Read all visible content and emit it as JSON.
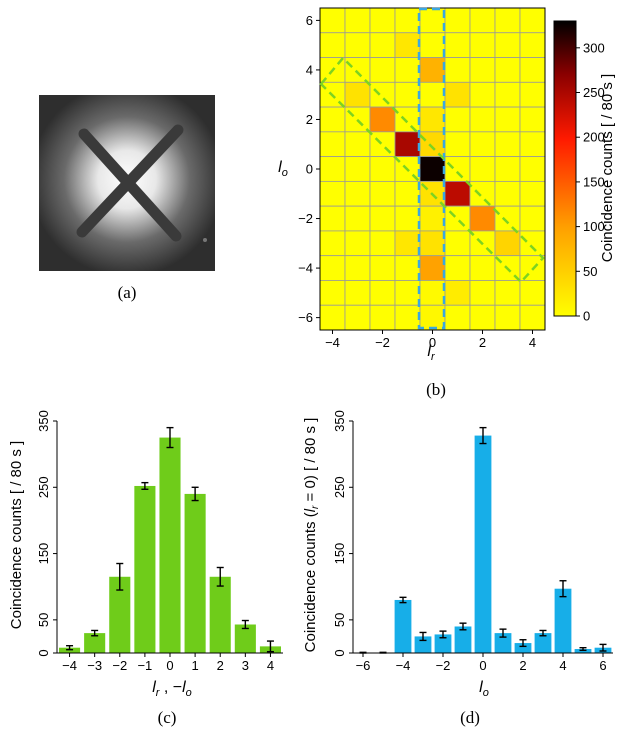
{
  "captions": {
    "a": "(a)",
    "b": "(b)",
    "c": "(c)",
    "d": "(d)"
  },
  "chart_data": [
    {
      "panel": "a",
      "type": "image",
      "description_label": ""
    },
    {
      "panel": "b",
      "type": "heatmap",
      "xlabel": "l_r",
      "ylabel": "l_o",
      "x": [
        -4,
        -3,
        -2,
        -1,
        0,
        1,
        2,
        3,
        4
      ],
      "y": [
        6,
        5,
        4,
        3,
        2,
        1,
        0,
        -1,
        -2,
        -3,
        -4,
        -5,
        -6
      ],
      "xticks": [
        "−4",
        "−2",
        "0",
        "2",
        "4"
      ],
      "xtick_values": [
        -4,
        -2,
        0,
        2,
        4
      ],
      "yticks": [
        "6",
        "4",
        "2",
        "0",
        "−2",
        "−4",
        "−6"
      ],
      "ytick_values": [
        6,
        4,
        2,
        0,
        -2,
        -4,
        -6
      ],
      "values": [
        [
          0,
          0,
          0,
          0,
          0,
          0,
          0,
          0,
          0
        ],
        [
          0,
          0,
          0,
          25,
          0,
          0,
          0,
          0,
          0
        ],
        [
          0,
          0,
          0,
          0,
          80,
          0,
          0,
          0,
          0
        ],
        [
          0,
          30,
          0,
          0,
          0,
          30,
          0,
          0,
          0
        ],
        [
          0,
          0,
          115,
          0,
          25,
          0,
          0,
          0,
          0
        ],
        [
          0,
          0,
          0,
          252,
          40,
          0,
          0,
          0,
          0
        ],
        [
          0,
          0,
          0,
          0,
          325,
          0,
          0,
          0,
          0
        ],
        [
          0,
          0,
          0,
          0,
          30,
          240,
          0,
          0,
          0
        ],
        [
          0,
          0,
          0,
          0,
          15,
          0,
          115,
          0,
          0
        ],
        [
          0,
          0,
          0,
          25,
          30,
          0,
          0,
          45,
          0
        ],
        [
          0,
          0,
          0,
          0,
          97,
          0,
          0,
          0,
          0
        ],
        [
          0,
          0,
          0,
          0,
          5,
          20,
          0,
          0,
          0
        ],
        [
          0,
          0,
          0,
          0,
          7,
          0,
          0,
          0,
          0
        ]
      ],
      "colorbar": {
        "label": "Coincidence counts [ / 80 s ]",
        "ticks": [
          "0",
          "50",
          "100",
          "150",
          "200",
          "250",
          "300"
        ],
        "tick_values": [
          0,
          50,
          100,
          150,
          200,
          250,
          300
        ],
        "range": [
          0,
          330
        ]
      },
      "highlights": [
        {
          "kind": "dashed-rect",
          "color": "#3aa8e0",
          "around": "l_r = 0 column"
        },
        {
          "kind": "dashed-rect",
          "color": "#7dd321",
          "around": "l_r = -l_o diagonal"
        }
      ]
    },
    {
      "panel": "c",
      "type": "bar",
      "color": "#6fcc1a",
      "categories": [
        -4,
        -3,
        -2,
        -1,
        0,
        1,
        2,
        3,
        4
      ],
      "xticks": [
        "−4",
        "−3",
        "−2",
        "−1",
        "0",
        "1",
        "2",
        "3",
        "4"
      ],
      "values": [
        8,
        30,
        115,
        252,
        325,
        240,
        115,
        43,
        10
      ],
      "errors": [
        3,
        4,
        20,
        5,
        15,
        10,
        14,
        6,
        8
      ],
      "ylabel": "Coincidence counts [ / 80 s ]",
      "xlabel": "l_r , −l_o",
      "yticks": [
        "0",
        "50",
        "150",
        "250",
        "350"
      ],
      "ytick_values": [
        0,
        50,
        150,
        250,
        350
      ],
      "ylim": [
        0,
        350
      ]
    },
    {
      "panel": "d",
      "type": "bar",
      "color": "#17aee8",
      "categories": [
        -6,
        -5,
        -4,
        -3,
        -2,
        -1,
        0,
        1,
        2,
        3,
        4,
        5,
        6
      ],
      "xticks": [
        "−6",
        "−4",
        "−2",
        "0",
        "2",
        "4",
        "6"
      ],
      "xtick_values": [
        -6,
        -4,
        -2,
        0,
        2,
        4,
        6
      ],
      "values": [
        0,
        0,
        80,
        25,
        28,
        40,
        328,
        30,
        15,
        30,
        97,
        6,
        8
      ],
      "errors": [
        1,
        1,
        4,
        6,
        5,
        5,
        12,
        6,
        5,
        4,
        12,
        2,
        5
      ],
      "ylabel": "Coincidence counts (l_r = 0) [ / 80 s ]",
      "xlabel": "l_o",
      "yticks": [
        "0",
        "50",
        "150",
        "250",
        "350"
      ],
      "ytick_values": [
        0,
        50,
        150,
        250,
        350
      ],
      "ylim": [
        0,
        350
      ]
    }
  ]
}
